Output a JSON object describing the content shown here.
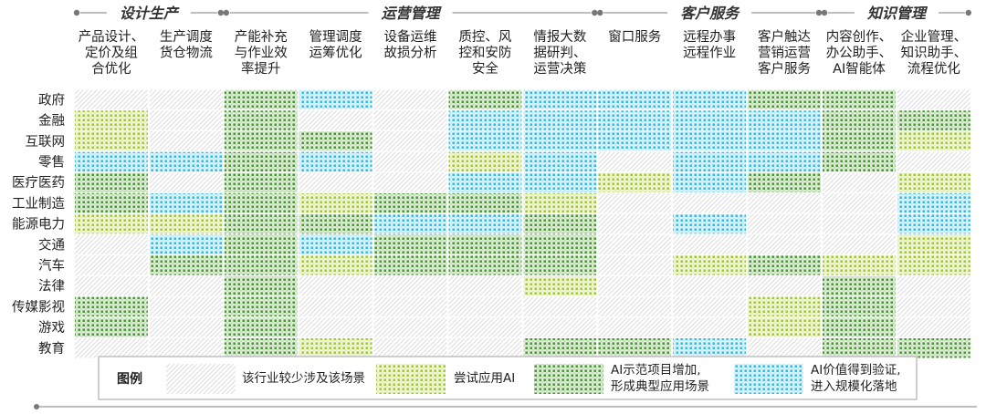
{
  "chart_data": {
    "type": "heatmap",
    "groups": [
      {
        "name": "设计生产",
        "columns": [
          0,
          1
        ]
      },
      {
        "name": "运营管理",
        "columns": [
          2,
          3,
          4,
          5,
          6
        ]
      },
      {
        "name": "客户服务",
        "columns": [
          7,
          8,
          9
        ]
      },
      {
        "name": "知识管理",
        "columns": [
          10,
          11
        ]
      }
    ],
    "columns": [
      [
        "产品设计、",
        "定价及组",
        "合优化"
      ],
      [
        "生产调度",
        "货仓物流"
      ],
      [
        "产能补充",
        "与作业效",
        "率提升"
      ],
      [
        "管理调度",
        "运筹优化"
      ],
      [
        "设备运维",
        "故损分析"
      ],
      [
        "质控、风",
        "控和安防",
        "安全"
      ],
      [
        "情报大数",
        "据研判、",
        "运营决策"
      ],
      [
        "窗口服务"
      ],
      [
        "远程办事",
        "远程作业"
      ],
      [
        "客户触达",
        "营销运营",
        "客户服务"
      ],
      [
        "内容创作、",
        "办公助手、",
        "AI智能体"
      ],
      [
        "企业管理、",
        "知识助手、",
        "流程优化"
      ]
    ],
    "rows": [
      "政府",
      "金融",
      "互联网",
      "零售",
      "医疗医药",
      "工业制造",
      "能源电力",
      "交通",
      "汽车",
      "法律",
      "传媒影视",
      "游戏",
      "教育"
    ],
    "matrix": [
      [
        0,
        0,
        2,
        3,
        0,
        2,
        3,
        3,
        3,
        2,
        2,
        0
      ],
      [
        1,
        0,
        2,
        0,
        0,
        3,
        3,
        3,
        3,
        3,
        2,
        2
      ],
      [
        1,
        0,
        2,
        2,
        0,
        3,
        3,
        3,
        3,
        3,
        2,
        1
      ],
      [
        3,
        3,
        2,
        3,
        0,
        1,
        3,
        0,
        3,
        3,
        2,
        0
      ],
      [
        2,
        0,
        2,
        0,
        0,
        3,
        3,
        1,
        3,
        2,
        0,
        1
      ],
      [
        2,
        3,
        2,
        1,
        2,
        2,
        1,
        0,
        0,
        0,
        0,
        3
      ],
      [
        1,
        1,
        2,
        2,
        3,
        3,
        2,
        0,
        3,
        0,
        0,
        3
      ],
      [
        0,
        3,
        2,
        3,
        2,
        2,
        2,
        0,
        0,
        0,
        0,
        1
      ],
      [
        0,
        2,
        2,
        1,
        2,
        2,
        2,
        0,
        1,
        2,
        1,
        1
      ],
      [
        0,
        0,
        2,
        0,
        0,
        0,
        1,
        0,
        0,
        0,
        2,
        0
      ],
      [
        2,
        0,
        2,
        0,
        0,
        0,
        0,
        0,
        0,
        1,
        2,
        0
      ],
      [
        2,
        0,
        2,
        0,
        0,
        0,
        0,
        0,
        0,
        1,
        2,
        0
      ],
      [
        0,
        0,
        2,
        1,
        0,
        0,
        2,
        2,
        3,
        0,
        2,
        2
      ]
    ],
    "legend_title": "图例",
    "levels": [
      {
        "value": 0,
        "lines": [
          "该行业较少涉及该场景"
        ],
        "color": "#d9d9d9",
        "background": "#ffffff"
      },
      {
        "value": 1,
        "lines": [
          "尝试应用AI"
        ],
        "color": "#a5c934",
        "background": "#f4f8e2"
      },
      {
        "value": 2,
        "lines": [
          "AI示范项目增加,",
          "形成典型应用场景"
        ],
        "color": "#4c9a35",
        "background": "#e6f0e0"
      },
      {
        "value": 3,
        "lines": [
          "AI价值得到验证,",
          "进入规模化落地"
        ],
        "color": "#33bde8",
        "background": "#e6f6fd"
      }
    ]
  }
}
